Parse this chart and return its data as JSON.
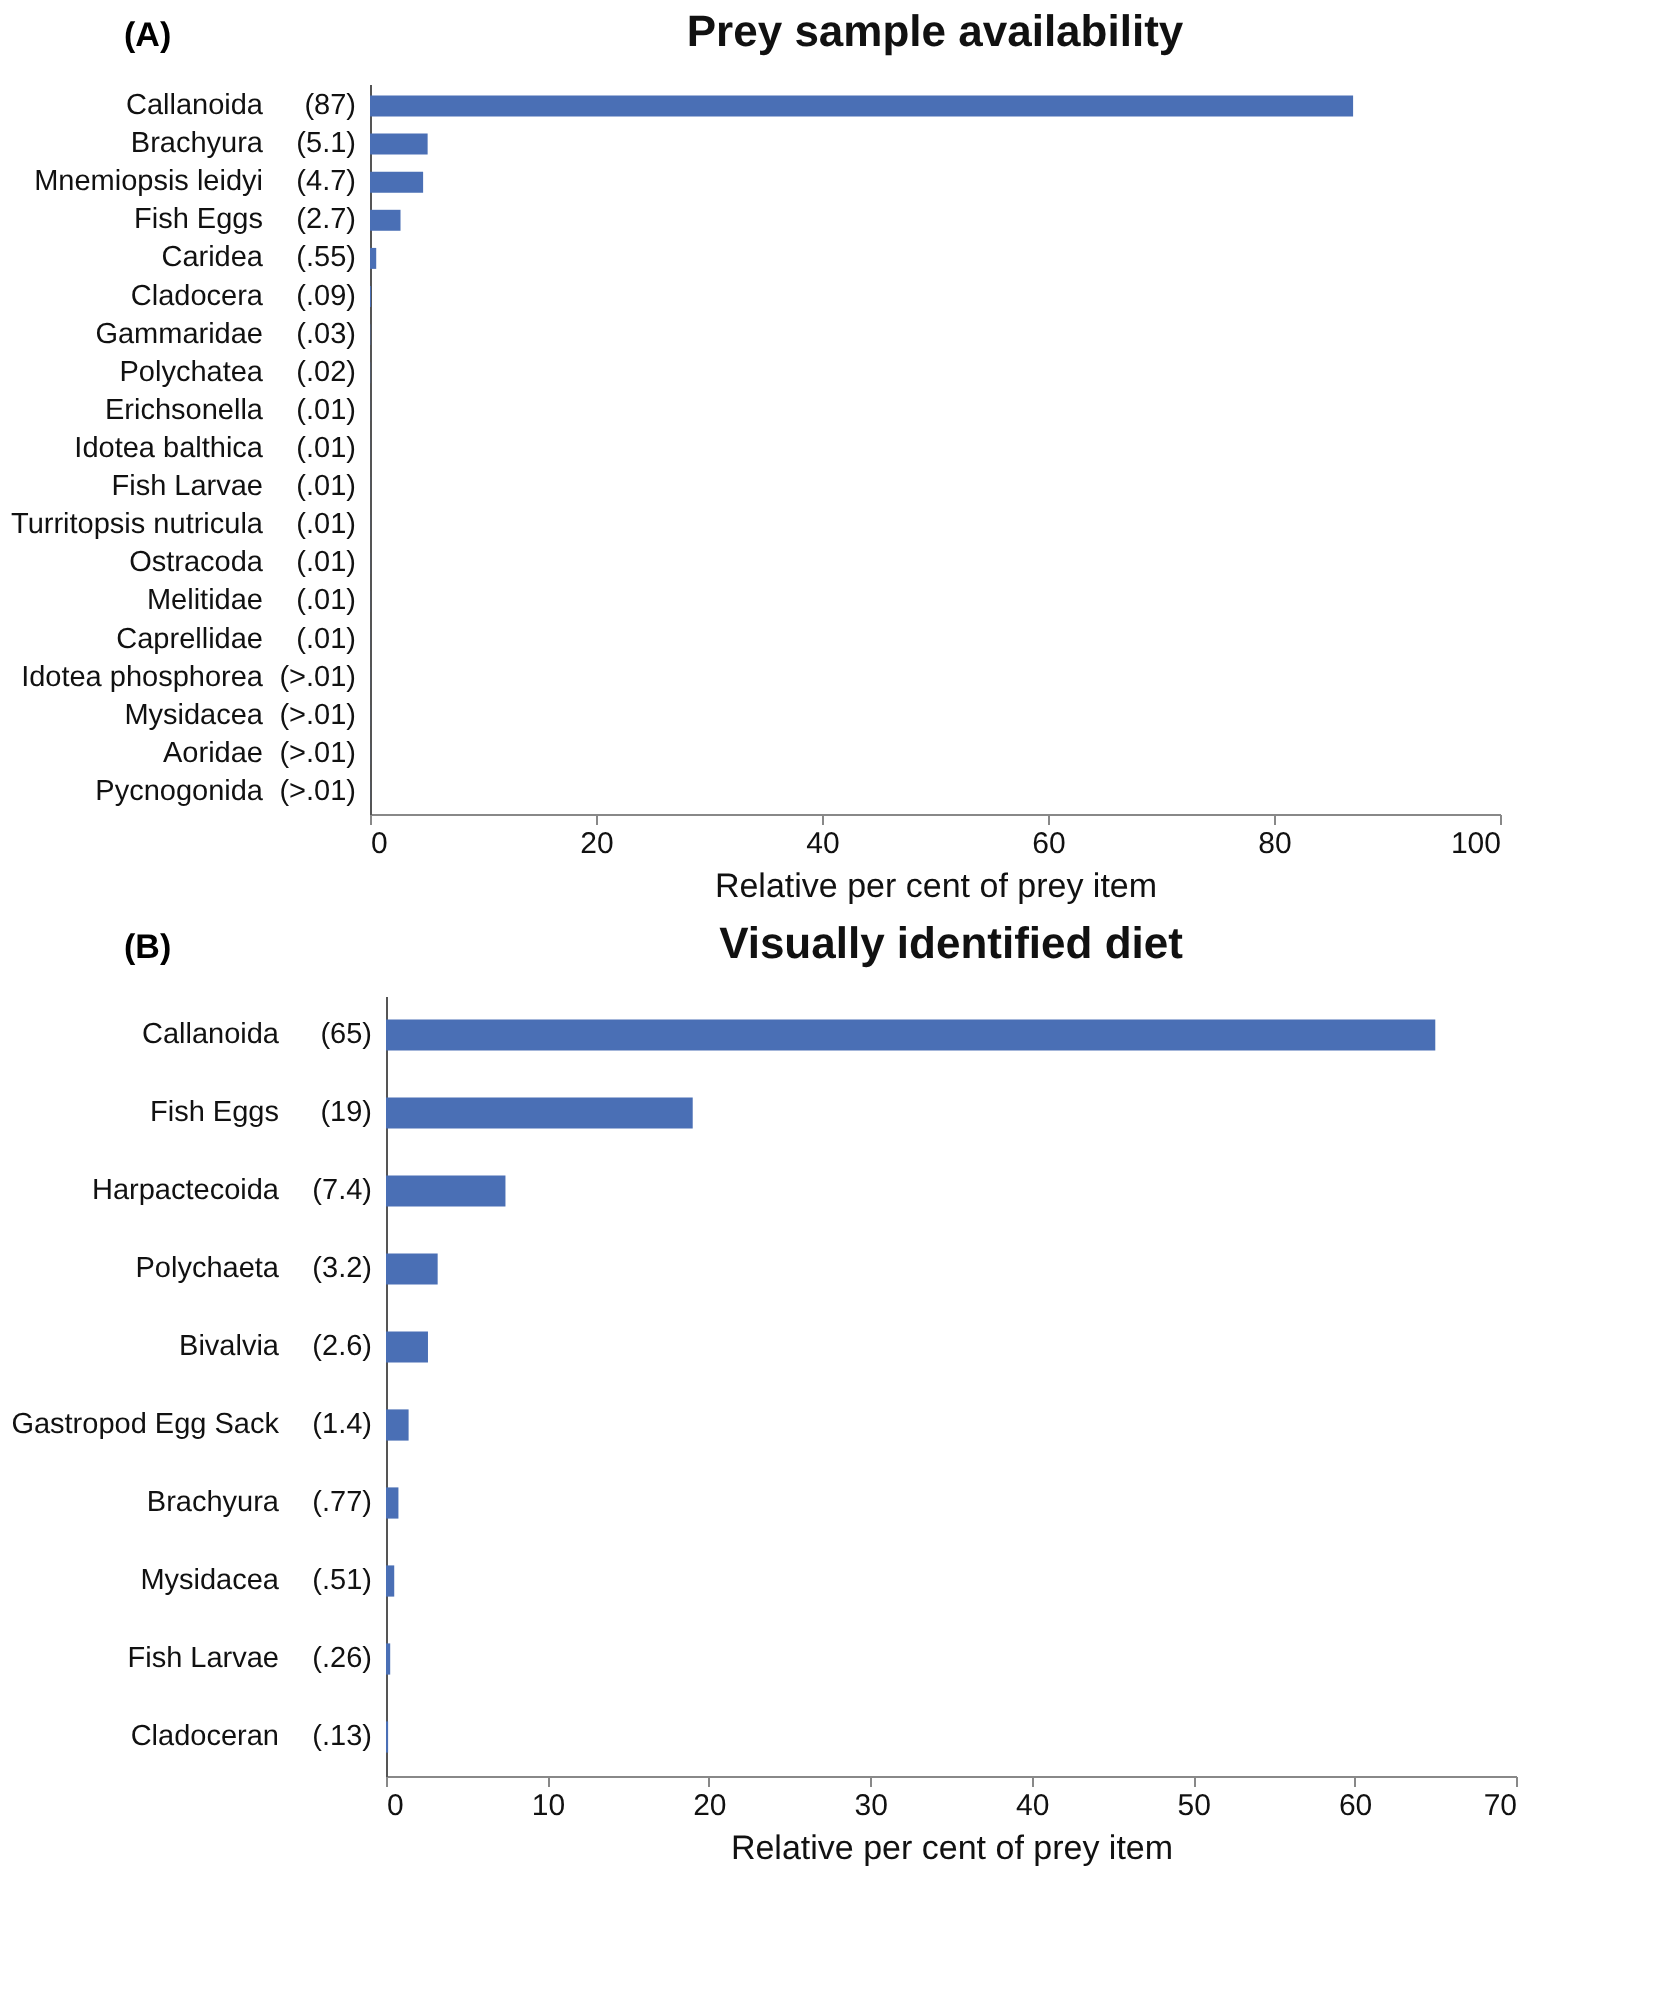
{
  "chart_data": [
    {
      "type": "bar",
      "orientation": "horizontal",
      "title": "Prey sample availability",
      "annotations": [
        "(A)"
      ],
      "xlabel": "Relative per cent of prey item",
      "categories": [
        "Callanoida",
        "Brachyura",
        "Mnemiopsis leidyi",
        "Fish Eggs",
        "Caridea",
        "Cladocera",
        "Gammaridae",
        "Polychatea",
        "Erichsonella",
        "Idotea balthica",
        "Fish Larvae",
        "Turritopsis nutricula",
        "Ostracoda",
        "Melitidae",
        "Caprellidae",
        "Idotea phosphorea",
        "Mysidacea",
        "Aoridae",
        "Pycnogonida"
      ],
      "values": [
        87,
        5.1,
        4.7,
        2.7,
        0.55,
        0.09,
        0.03,
        0.02,
        0.01,
        0.01,
        0.01,
        0.01,
        0.01,
        0.01,
        0.01,
        0.01,
        0.01,
        0.01,
        0.01
      ],
      "value_labels": [
        "(87)",
        "(5.1)",
        "(4.7)",
        "(2.7)",
        "(.55)",
        "(.09)",
        "(.03)",
        "(.02)",
        "(.01)",
        "(.01)",
        "(.01)",
        "(.01)",
        "(.01)",
        "(.01)",
        "(.01)",
        "(>.01)",
        "(>.01)",
        "(>.01)",
        "(>.01)"
      ],
      "color": "#4a6fb5",
      "xlim": [
        0,
        100
      ],
      "xticks": [
        0,
        20,
        40,
        60,
        80,
        100
      ]
    },
    {
      "type": "bar",
      "orientation": "horizontal",
      "title": "Visually identified diet",
      "annotations": [
        "(B)"
      ],
      "xlabel": "Relative per cent of prey item",
      "categories": [
        "Callanoida",
        "Fish Eggs",
        "Harpactecoida",
        "Polychaeta",
        "Bivalvia",
        "Gastropod Egg Sack",
        "Brachyura",
        "Mysidacea",
        "Fish Larvae",
        "Cladoceran"
      ],
      "values": [
        65,
        19,
        7.4,
        3.2,
        2.6,
        1.4,
        0.77,
        0.51,
        0.26,
        0.13
      ],
      "value_labels": [
        "(65)",
        "(19)",
        "(7.4)",
        "(3.2)",
        "(2.6)",
        "(1.4)",
        "(.77)",
        "(.51)",
        "(.26)",
        "(.13)"
      ],
      "color": "#4a6fb5",
      "xlim": [
        0,
        70
      ],
      "xticks": [
        0,
        10,
        20,
        30,
        40,
        50,
        60,
        70
      ]
    }
  ]
}
